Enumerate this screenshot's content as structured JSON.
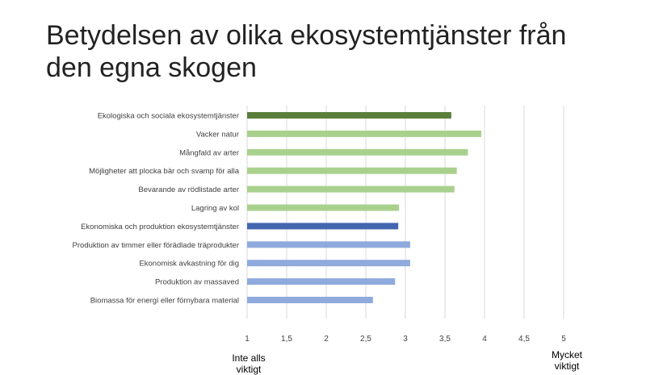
{
  "title": {
    "line1": "Betydelsen av olika ekosystemtjänster från",
    "line2": "den egna skogen"
  },
  "scale_labels": {
    "low_line1": "Inte alls",
    "low_line2": "viktigt",
    "high_line1": "Mycket",
    "high_line2": "viktigt"
  },
  "colors": {
    "green_dark": "#5a7f3c",
    "green_light": "#a9d18e",
    "blue_dark": "#4466b0",
    "blue_light": "#8faadc",
    "grid": "#d9d9d9",
    "label": "#404040"
  },
  "chart_data": {
    "type": "bar",
    "orientation": "horizontal",
    "categories": [
      "Ekologiska och sociala ekosystemtjänster",
      "Vacker natur",
      "Mångfald av arter",
      "Möjligheter att plocka bär och svamp för alla",
      "Bevarande av rödlistade arter",
      "Lagring av kol",
      "Ekonomiska och produktion ekosystemtjänster",
      "Produktion av timmer eller förädlade träprodukter",
      "Ekonomisk avkastning för dig",
      "Produktion av massaved",
      "Biomassa för energi eller förnybara material"
    ],
    "values": [
      3.58,
      3.96,
      3.79,
      3.65,
      3.62,
      2.92,
      2.91,
      3.06,
      3.06,
      2.87,
      2.59
    ],
    "bar_colors": [
      "green_dark",
      "green_light",
      "green_light",
      "green_light",
      "green_light",
      "green_light",
      "blue_dark",
      "blue_light",
      "blue_light",
      "blue_light",
      "blue_light"
    ],
    "xlim": [
      1,
      5
    ],
    "xticks": [
      "1",
      "1,5",
      "2",
      "2,5",
      "3",
      "3,5",
      "4",
      "4,5",
      "5"
    ],
    "xtick_values": [
      1,
      1.5,
      2,
      2.5,
      3,
      3.5,
      4,
      4.5,
      5
    ],
    "grid": true,
    "legend": "none",
    "title": "Betydelsen av olika ekosystemtjänster från den egna skogen",
    "xlabel": "",
    "ylabel": ""
  }
}
